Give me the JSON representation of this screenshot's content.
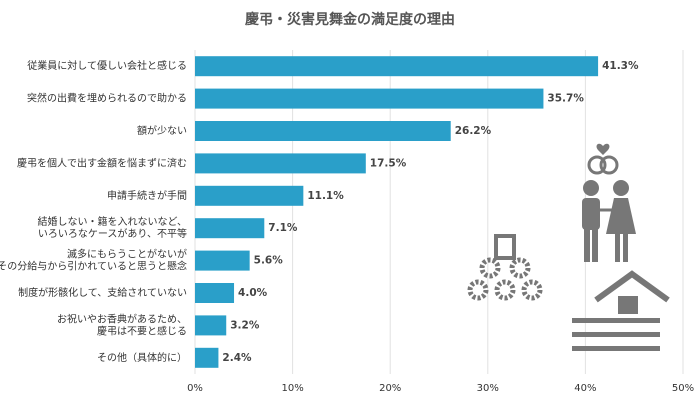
{
  "chart_data": {
    "type": "hbar",
    "title": "慶弔・災害見舞金の満足度の理由",
    "categories": [
      [
        "従業員に対して優しい会社と感じる"
      ],
      [
        "突然の出費を埋められるので助かる"
      ],
      [
        "額が少ない"
      ],
      [
        "慶弔を個人で出す金額を悩まずに済む"
      ],
      [
        "申請手続きが手間"
      ],
      [
        "結婚しない・籍を入れないなど、",
        "いろいろなケースがあり、不平等"
      ],
      [
        "滅多にもらうことがないが",
        "その分給与から引かれていると思うと懸念"
      ],
      [
        "制度が形骸化して、支給されていない"
      ],
      [
        "お祝いやお香典があるため、",
        "慶弔は不要と感じる"
      ],
      [
        "その他（具体的に）"
      ]
    ],
    "values": [
      41.3,
      35.7,
      26.2,
      17.5,
      11.1,
      7.1,
      5.6,
      4.0,
      3.2,
      2.4
    ],
    "value_labels": [
      "41.3%",
      "35.7%",
      "26.2%",
      "17.5%",
      "11.1%",
      "7.1%",
      "5.6%",
      "4.0%",
      "3.2%",
      "2.4%"
    ],
    "color": "#2a9fc9",
    "xlim": [
      0,
      50
    ],
    "xticks": [
      {
        "value": 0,
        "label": "0%"
      },
      {
        "value": 10,
        "label": "10%"
      },
      {
        "value": 20,
        "label": "20%"
      },
      {
        "value": 30,
        "label": "30%"
      },
      {
        "value": 40,
        "label": "40%"
      },
      {
        "value": 50,
        "label": "50%"
      }
    ],
    "grid": true
  }
}
